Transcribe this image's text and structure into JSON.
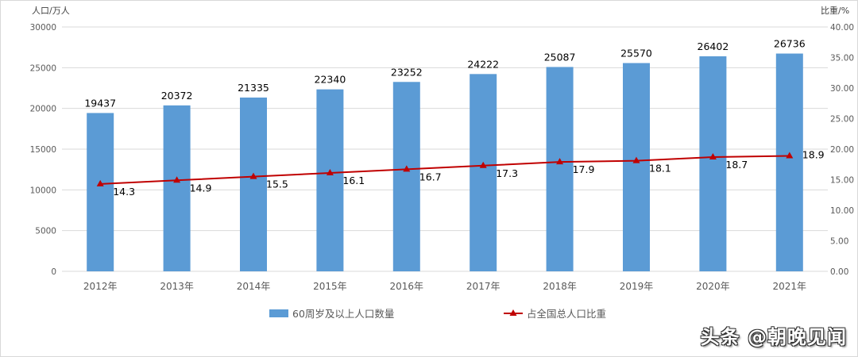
{
  "chart_data": {
    "type": "bar+line",
    "title": "",
    "categories": [
      "2012年",
      "2013年",
      "2014年",
      "2015年",
      "2016年",
      "2017年",
      "2018年",
      "2019年",
      "2020年",
      "2021年"
    ],
    "series": [
      {
        "name": "60周岁及以上人口数量",
        "type": "bar",
        "axis": "left",
        "color": "#5B9BD5",
        "values": [
          19437,
          20372,
          21335,
          22340,
          23252,
          24222,
          25087,
          25570,
          26402,
          26736
        ]
      },
      {
        "name": "占全国总人口比重",
        "type": "line",
        "axis": "right",
        "color": "#C00000",
        "marker": "triangle",
        "values": [
          14.3,
          14.9,
          15.5,
          16.1,
          16.7,
          17.3,
          17.9,
          18.1,
          18.7,
          18.9
        ]
      }
    ],
    "ylabel": "人口/万人",
    "ylabel_right": "比重/%",
    "ylim": [
      0,
      30000
    ],
    "ylim_right": [
      0,
      40
    ],
    "yticks": [
      "0",
      "5000",
      "10000",
      "15000",
      "20000",
      "25000",
      "30000"
    ],
    "yticks_right": [
      "0.00",
      "5.00",
      "10.00",
      "15.00",
      "20.00",
      "25.00",
      "30.00",
      "35.00",
      "40.00"
    ],
    "grid": true,
    "legend_position": "bottom"
  },
  "watermark": "头条 @朝晚见闻"
}
